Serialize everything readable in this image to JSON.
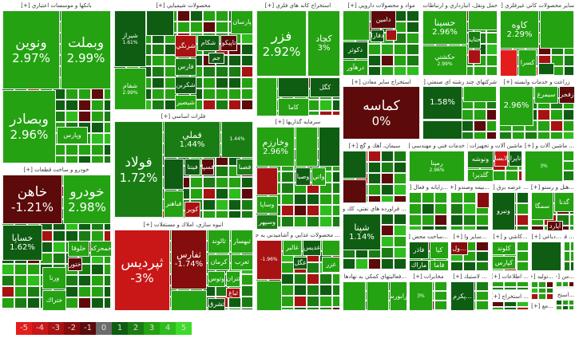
{
  "legend": [
    {
      "label": "-5",
      "color": "#e51c1c"
    },
    {
      "label": "-4",
      "color": "#c91616"
    },
    {
      "label": "-3",
      "color": "#a81212"
    },
    {
      "label": "-2",
      "color": "#860d0d"
    },
    {
      "label": "-1",
      "color": "#5c0a0a"
    },
    {
      "label": "0",
      "color": "#6c6c6c"
    },
    {
      "label": "1",
      "color": "#0f5d12"
    },
    {
      "label": "2",
      "color": "#1a7d14"
    },
    {
      "label": "3",
      "color": "#24a212"
    },
    {
      "label": "4",
      "color": "#2dbd1c"
    },
    {
      "label": "5",
      "color": "#3ddb2a"
    }
  ],
  "sectors": [
    {
      "title": "بانكها و موسسات اعتباري [+]",
      "tiles": [
        {
          "label": "ونوين",
          "value": "2.97%",
          "c": 3
        },
        {
          "label": "وبملت",
          "value": "2.99%",
          "c": 3
        },
        {
          "label": "وبصادر",
          "value": "2.96%",
          "c": 3
        },
        {
          "label": "وپارس",
          "value": "",
          "c": 3
        }
      ]
    },
    {
      "title": "خودرو و ساخت قطعات [+]",
      "tiles": [
        {
          "label": "خاهن",
          "value": "-1.21%",
          "c": -1
        },
        {
          "label": "خودرو",
          "value": "2.98%",
          "c": 3
        },
        {
          "label": "خساپا",
          "value": "1.62%",
          "c": 1
        },
        {
          "label": "خمحركه",
          "value": "",
          "c": 3
        },
        {
          "label": "خلوقا",
          "value": "",
          "c": 3
        },
        {
          "label": "ختور",
          "value": "",
          "c": -1
        },
        {
          "label": "ورنا",
          "value": "",
          "c": 3
        },
        {
          "label": "ختراك",
          "value": "",
          "c": 3
        }
      ]
    },
    {
      "title": "محصولات شيميايي [+]",
      "tiles": [
        {
          "label": "شيراز",
          "value": "1.61%",
          "c": 1
        },
        {
          "label": "شفام",
          "value": "2.99%",
          "c": 3
        },
        {
          "label": "پارسان",
          "value": "",
          "c": 3
        },
        {
          "label": "تاپيكو",
          "value": "",
          "c": -1
        },
        {
          "label": "شكام",
          "value": "",
          "c": 1
        },
        {
          "label": "شرنگي",
          "value": "",
          "c": -3
        },
        {
          "label": "فارس",
          "value": "",
          "c": 2
        },
        {
          "label": "شكربن",
          "value": "",
          "c": 1
        },
        {
          "label": "شيصير",
          "value": "",
          "c": 3
        },
        {
          "label": "جم",
          "value": "",
          "c": 1
        },
        {
          "label": "",
          "value": "",
          "c": 1
        }
      ]
    },
    {
      "title": "فلزات اساسي [+]",
      "tiles": [
        {
          "label": "فولاد",
          "value": "1.72%",
          "c": 2
        },
        {
          "label": "فملي",
          "value": "1.44%",
          "c": 2
        },
        {
          "label": "",
          "value": "1.44%",
          "c": 2
        },
        {
          "label": "فسپا",
          "value": "",
          "c": -1
        },
        {
          "label": "فصبا",
          "value": "",
          "c": 2
        },
        {
          "label": "فينتا",
          "value": "",
          "c": 1
        },
        {
          "label": "كوير",
          "value": "",
          "c": -3
        },
        {
          "label": "فباهنر",
          "value": "",
          "c": 3
        },
        {
          "label": "",
          "value": "",
          "c": 1
        }
      ]
    },
    {
      "title": "انبوه سازي، املاك و مستغلات [+]",
      "tiles": [
        {
          "label": "ثپرديس",
          "value": "-3%",
          "c": -4
        },
        {
          "label": "ثفارس",
          "value": "-1.74%",
          "c": -2
        },
        {
          "label": "ثبهسار",
          "value": "",
          "c": 3
        },
        {
          "label": "ثالوند",
          "value": "",
          "c": 3
        },
        {
          "label": "ثعرب",
          "value": "",
          "c": 3
        },
        {
          "label": "كرمان",
          "value": "",
          "c": 3
        },
        {
          "label": "وتوس",
          "value": "",
          "c": 3
        },
        {
          "label": "ثتران",
          "value": "",
          "c": 3
        },
        {
          "label": "ثباغ",
          "value": "",
          "c": -3
        },
        {
          "label": "ثشرق",
          "value": "",
          "c": 1
        },
        {
          "label": "",
          "value": "",
          "c": 3
        }
      ]
    },
    {
      "title": "استخراج كانه هاي فلزي [+]",
      "tiles": [
        {
          "label": "فزر",
          "value": "2.92%",
          "c": 3
        },
        {
          "label": "كچاد",
          "value": "3%",
          "c": 3
        },
        {
          "label": "كگل",
          "value": "",
          "c": 1
        },
        {
          "label": "",
          "value": "",
          "c": 1
        },
        {
          "label": "كاما",
          "value": "",
          "c": 3
        },
        {
          "label": "",
          "value": "",
          "c": 3
        }
      ]
    },
    {
      "title": "سرمايه گذاريها [+]",
      "tiles": [
        {
          "label": "وخارزم",
          "value": "2.96%",
          "c": 3
        },
        {
          "label": "",
          "value": "",
          "c": 3
        },
        {
          "label": "",
          "value": "",
          "c": 1
        },
        {
          "label": "",
          "value": "",
          "c": -3
        },
        {
          "label": "وصبا",
          "value": "",
          "c": 1
        },
        {
          "label": "واتي",
          "value": "",
          "c": 3
        },
        {
          "label": "وساپا",
          "value": "",
          "c": 3
        },
        {
          "label": "وسپهر",
          "value": "",
          "c": 2
        }
      ]
    },
    {
      "title": "... محصولات غذايي و آشاميدني به جز [+]",
      "tiles": [
        {
          "label": "",
          "value": "-1.96%",
          "c": -3
        },
        {
          "label": "غالبر",
          "value": "",
          "c": 3
        },
        {
          "label": "غديس",
          "value": "",
          "c": 1
        },
        {
          "label": "",
          "value": "",
          "c": 3
        },
        {
          "label": "غزر",
          "value": "",
          "c": 3
        },
        {
          "label": "غگل",
          "value": "",
          "c": 1
        },
        {
          "label": "",
          "value": "",
          "c": 3
        }
      ]
    },
    {
      "title": "مواد و محصولات دارويي [+]",
      "tiles": [
        {
          "label": "دامين",
          "value": "",
          "c": -1
        },
        {
          "label": "دكوثر",
          "value": "",
          "c": 1
        },
        {
          "label": "درهآور",
          "value": "",
          "c": 3
        },
        {
          "label": "دفارا",
          "value": "",
          "c": 1
        },
        {
          "label": "",
          "value": "",
          "c": 3
        },
        {
          "label": "",
          "value": "",
          "c": -3
        }
      ]
    },
    {
      "title": "حمل ونقل، انبارداري و ارتباطات [+]",
      "tiles": [
        {
          "label": "حسينا",
          "value": "2.96%",
          "c": 3
        },
        {
          "label": "حكشتي",
          "value": "2.99%",
          "c": 3
        },
        {
          "label": "",
          "value": "",
          "c": 3
        },
        {
          "label": "حتايد",
          "value": "",
          "c": 2
        },
        {
          "label": "",
          "value": "",
          "c": -3
        }
      ]
    },
    {
      "title": "ساير محصولات كاني غيرفلزي [+]",
      "tiles": [
        {
          "label": "كاوه",
          "value": "2.29%",
          "c": 3
        },
        {
          "label": "",
          "value": "",
          "c": 3
        },
        {
          "label": "",
          "value": "",
          "c": -5
        },
        {
          "label": "كسرا",
          "value": "",
          "c": 3
        },
        {
          "label": "",
          "value": "",
          "c": 1
        }
      ]
    },
    {
      "title": "استخراج ساير معادن [+]",
      "tiles": [
        {
          "label": "كماسه",
          "value": "0%",
          "c": -1
        }
      ]
    },
    {
      "title": "شركتهاي چند رشته اي صنعتي [+]",
      "tiles": [
        {
          "label": "",
          "value": "1.58%",
          "c": 1
        },
        {
          "label": "",
          "value": "",
          "c": 3
        },
        {
          "label": "",
          "value": "",
          "c": 1
        }
      ]
    },
    {
      "title": "زراعت و خدمات وابسته [+]",
      "tiles": [
        {
          "label": "",
          "value": "2.96%",
          "c": 3
        },
        {
          "label": "سيمرغ",
          "value": "",
          "c": 3
        },
        {
          "label": "زفجر",
          "value": "",
          "c": -1
        }
      ]
    },
    {
      "title": "سيمان، آهك و گچ [+]",
      "tiles": [
        {
          "label": "",
          "value": "",
          "c": 1
        },
        {
          "label": "",
          "value": "",
          "c": -1
        }
      ]
    },
    {
      "title": "خدمات فني و مهندسي [+]",
      "tiles": [
        {
          "label": "رمپنا",
          "value": "2.96%",
          "c": 3
        }
      ]
    },
    {
      "title": "ماشين آلات و تجهيزات [+]",
      "tiles": [
        {
          "label": "ونوشه",
          "value": "",
          "c": 2
        },
        {
          "label": "گلديرا",
          "value": "",
          "c": 3
        },
        {
          "label": "لابسا",
          "value": "",
          "c": -4
        },
        {
          "label": "تاپرا",
          "value": "",
          "c": 1
        }
      ]
    },
    {
      "title": "... ماشين آلات و [+]",
      "tiles": [
        {
          "label": "",
          "value": "3%",
          "c": 3
        }
      ]
    },
    {
      "title": "... فراورده هاي نفتي، كك و [+]",
      "tiles": [
        {
          "label": "شپنا",
          "value": "1.14%",
          "c": 1
        }
      ]
    },
    {
      "title": "...رايانه و فعال [+]",
      "tiles": []
    },
    {
      "title": "...بيمه وصندو [+]",
      "tiles": [
        {
          "label": "",
          "value": "",
          "c": -2
        }
      ]
    },
    {
      "title": "... عرضه برق [+]",
      "tiles": [
        {
          "label": "ونيرو",
          "value": "",
          "c": 1
        }
      ]
    },
    {
      "title": "...هتل و رستو [+]",
      "tiles": [
        {
          "label": "سمگا",
          "value": "",
          "c": 3
        },
        {
          "label": "گدنا",
          "value": "",
          "c": 3
        },
        {
          "label": "آپارد",
          "value": "",
          "c": -1
        }
      ]
    },
    {
      "title": "...ساخت محض [+]",
      "tiles": [
        {
          "label": "فاذر",
          "value": "",
          "c": 1
        },
        {
          "label": "كيا",
          "value": "",
          "c": 3
        },
        {
          "label": "فاما",
          "value": "",
          "c": 3
        },
        {
          "label": "ماراك",
          "value": "",
          "c": 1
        }
      ]
    },
    {
      "title": "...ساير وا [+]",
      "tiles": [
        {
          "label": "...ول",
          "value": "",
          "c": -2
        }
      ]
    },
    {
      "title": "...كاشي و [+]",
      "tiles": [
        {
          "label": "كلوند",
          "value": "",
          "c": 3
        },
        {
          "label": "كپارس",
          "value": "",
          "c": 3
        }
      ]
    },
    {
      "title": "...دباغي [+]",
      "tiles": [
        {
          "label": "",
          "value": "",
          "c": 1
        }
      ]
    },
    {
      "title": "... قند [+]",
      "tiles": []
    },
    {
      "title": "...فعاليتهاي كمكي به نهادها [+]",
      "tiles": [
        {
          "label": "فرابورس",
          "value": "",
          "c": 3
        },
        {
          "label": "",
          "value": "",
          "c": 3
        },
        {
          "label": "",
          "value": "",
          "c": 3
        }
      ]
    },
    {
      "title": "مخابرات [+]",
      "tiles": [
        {
          "label": "",
          "value": "3%",
          "c": 3
        }
      ]
    },
    {
      "title": "... لاستيك [+]",
      "tiles": [
        {
          "label": "...پكرم",
          "value": "",
          "c": 1
        }
      ]
    },
    {
      "title": "... اطلاعات [+]",
      "tiles": []
    },
    {
      "title": "... استخراج [+]",
      "tiles": []
    },
    {
      "title": "...توليد [+]",
      "tiles": []
    },
    {
      "title": "...من [+]",
      "tiles": []
    },
    {
      "title": "...مع [+]",
      "tiles": []
    },
    {
      "title": "...استخ [+]",
      "tiles": []
    }
  ]
}
